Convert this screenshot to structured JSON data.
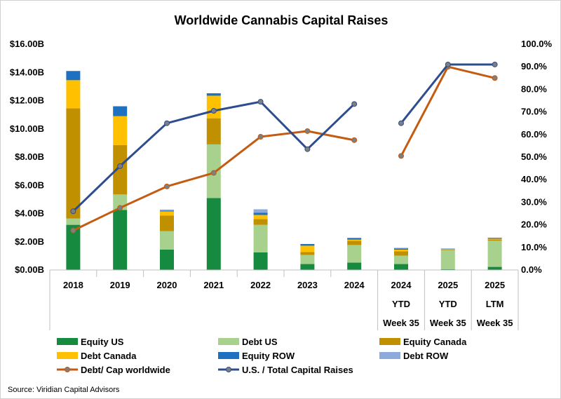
{
  "chart_data": {
    "type": "bar",
    "title": "Worldwide Cannabis Capital Raises",
    "source": "Source: Viridian Capital Advisors",
    "categories": [
      [
        "2018"
      ],
      [
        "2019"
      ],
      [
        "2020"
      ],
      [
        "2021"
      ],
      [
        "2022"
      ],
      [
        "2023"
      ],
      [
        "2024"
      ],
      [
        "2024",
        "YTD",
        "Week 35"
      ],
      [
        "2025",
        "YTD",
        "Week 35"
      ],
      [
        "2025",
        "LTM",
        "Week 35"
      ]
    ],
    "y_left": {
      "min": 0,
      "max": 16,
      "step": 2,
      "unit": "B",
      "ticks": [
        "$0.00B",
        "$2.00B",
        "$4.00B",
        "$6.00B",
        "$8.00B",
        "$10.00B",
        "$12.00B",
        "$14.00B",
        "$16.00B"
      ]
    },
    "y_right": {
      "min": 0,
      "max": 100,
      "step": 10,
      "ticks": [
        "0.0%",
        "10.0%",
        "20.0%",
        "30.0%",
        "40.0%",
        "50.0%",
        "60.0%",
        "70.0%",
        "80.0%",
        "90.0%",
        "100.0%"
      ]
    },
    "bar_series": [
      {
        "name": "Equity US",
        "color": "#168a3f",
        "values": [
          3.2,
          4.25,
          1.45,
          5.1,
          1.25,
          0.42,
          0.52,
          0.42,
          0.06,
          0.22
        ]
      },
      {
        "name": "Debt US",
        "color": "#a9d18e",
        "values": [
          0.45,
          1.1,
          1.3,
          3.8,
          1.95,
          0.65,
          1.25,
          0.6,
          1.35,
          1.85
        ]
      },
      {
        "name": "Equity Canada",
        "color": "#c09000",
        "values": [
          7.8,
          3.5,
          1.1,
          1.85,
          0.4,
          0.2,
          0.3,
          0.3,
          0.06,
          0.1
        ]
      },
      {
        "name": "Debt Canada",
        "color": "#ffc000",
        "values": [
          2.0,
          2.05,
          0.3,
          1.6,
          0.3,
          0.45,
          0.08,
          0.12,
          0.03,
          0.05
        ]
      },
      {
        "name": "Equity ROW",
        "color": "#1f70c1",
        "values": [
          0.65,
          0.7,
          0.06,
          0.17,
          0.15,
          0.12,
          0.12,
          0.08,
          0.02,
          0.06
        ]
      },
      {
        "name": "Debt ROW",
        "color": "#8eaadb",
        "values": [
          0.0,
          0.0,
          0.07,
          0.0,
          0.25,
          0.0,
          0.0,
          0.05,
          0.0,
          0.0
        ]
      }
    ],
    "line_series": [
      {
        "name": "Debt/ Cap worldwide",
        "color": "#c55a11",
        "axis": "right",
        "segments": [
          [
            0,
            6
          ],
          [
            7,
            9
          ]
        ],
        "values": [
          17.5,
          27.5,
          37,
          43,
          59,
          61.5,
          57.5,
          50.5,
          90,
          85
        ]
      },
      {
        "name": "U.S. / Total Capital Raises",
        "color": "#2e4d8f",
        "axis": "right",
        "segments": [
          [
            0,
            6
          ],
          [
            7,
            9
          ]
        ],
        "values": [
          26,
          46,
          65,
          70.5,
          74.5,
          53.5,
          73.5,
          65,
          91,
          91
        ]
      }
    ],
    "legend": {
      "placement": "bottom",
      "order": [
        "Equity US",
        "Debt US",
        "Equity Canada",
        "Debt Canada",
        "Equity ROW",
        "Debt ROW",
        "Debt/ Cap worldwide",
        "U.S. / Total Capital Raises"
      ]
    },
    "grid": false
  }
}
